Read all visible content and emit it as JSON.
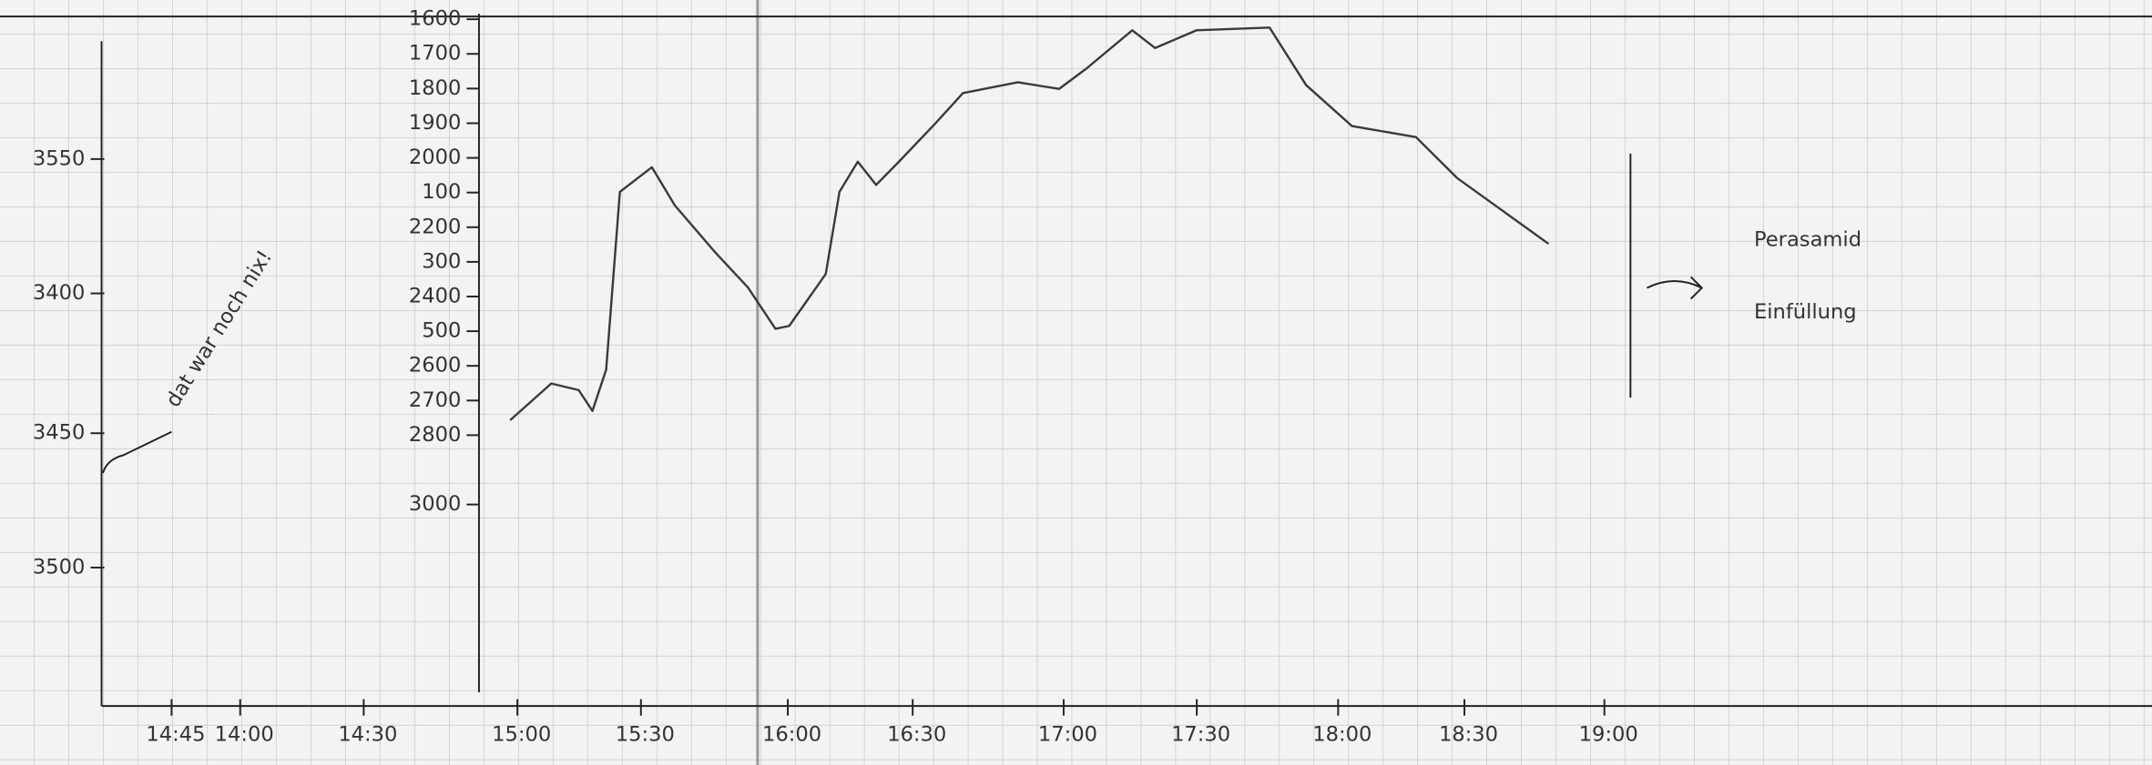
{
  "chart_data": {
    "type": "line",
    "left_axis_labels": [
      "3550",
      "3400",
      "3450",
      "3500"
    ],
    "ylim": [
      1600,
      3000
    ],
    "yticks": [
      1600,
      1700,
      1800,
      1900,
      2000,
      {
        "value": 2100,
        "label": "100"
      },
      2200,
      {
        "value": 2300,
        "label": "300"
      },
      2400,
      {
        "value": 2500,
        "label": "500"
      },
      2600,
      2700,
      2800,
      3000
    ],
    "x_axis_labels": [
      "14:45",
      "14:00",
      "14:30",
      "15:00",
      "15:30",
      "16:00",
      "16:30",
      "17:00",
      "17:30",
      "18:00",
      "18:30",
      "19:00"
    ],
    "x": [
      "14:59",
      "15:08",
      "15:14",
      "15:17",
      "15:20",
      "15:23",
      "15:30",
      "15:35",
      "15:44",
      "15:51",
      "15:57",
      "16:00",
      "16:08",
      "16:11",
      "16:15",
      "16:19",
      "16:24",
      "16:32",
      "16:38",
      "16:50",
      "16:59",
      "17:05",
      "17:15",
      "17:20",
      "17:29",
      "17:45",
      "17:53",
      "18:03",
      "18:17",
      "18:26",
      "18:46"
    ],
    "values": [
      2757,
      2651,
      2670,
      2730,
      2611,
      2098,
      2027,
      2137,
      2275,
      2374,
      2493,
      2485,
      2335,
      2098,
      2011,
      2078,
      2011,
      1900,
      1813,
      1782,
      1801,
      1742,
      1632,
      1683,
      1632,
      1624,
      1790,
      1908,
      1940,
      2058,
      2248
    ],
    "color": "#3a3a3a",
    "annotations": [
      "dat war noch nix!",
      "Perasamid",
      "Einfüllung"
    ]
  }
}
